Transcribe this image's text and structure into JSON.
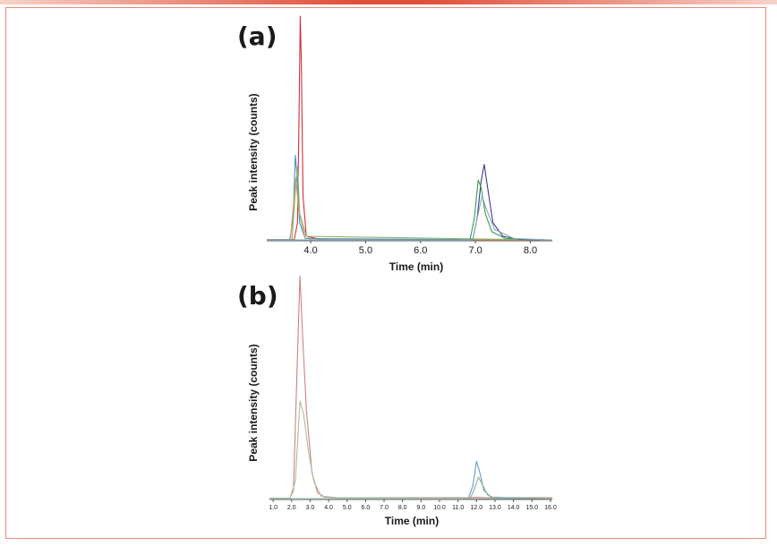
{
  "chart_data": [
    {
      "type": "line",
      "panel_label": "(a)",
      "xlabel": "Time (min)",
      "ylabel": "Peak intensity (counts)",
      "xlim": [
        3.2,
        8.4
      ],
      "ylim": [
        0,
        100
      ],
      "x_ticks": [
        "4.0",
        "5.0",
        "6.0",
        "7.0",
        "8.0"
      ],
      "x_tick_values": [
        4.0,
        5.0,
        6.0,
        7.0,
        8.0
      ],
      "series": [
        {
          "color": "#d0303a",
          "points": [
            [
              3.2,
              0.5
            ],
            [
              3.7,
              0.5
            ],
            [
              3.76,
              8
            ],
            [
              3.79,
              60
            ],
            [
              3.81,
              100
            ],
            [
              3.83,
              80
            ],
            [
              3.86,
              20
            ],
            [
              3.92,
              2
            ],
            [
              4.2,
              0.5
            ],
            [
              8.4,
              0.3
            ]
          ]
        },
        {
          "color": "#4a8fbf",
          "points": [
            [
              3.2,
              0.5
            ],
            [
              3.62,
              0.5
            ],
            [
              3.68,
              10
            ],
            [
              3.72,
              38
            ],
            [
              3.75,
              30
            ],
            [
              3.8,
              8
            ],
            [
              3.9,
              1
            ],
            [
              8.4,
              0.3
            ]
          ]
        },
        {
          "color": "#c9a060",
          "points": [
            [
              3.2,
              0.5
            ],
            [
              3.63,
              0.5
            ],
            [
              3.7,
              20
            ],
            [
              3.73,
              28
            ],
            [
              3.78,
              14
            ],
            [
              3.88,
              3
            ],
            [
              4.0,
              0.5
            ],
            [
              8.4,
              0.3
            ]
          ]
        },
        {
          "color": "#8fb070",
          "points": [
            [
              3.2,
              0.5
            ],
            [
              3.66,
              0.5
            ],
            [
              3.72,
              22
            ],
            [
              3.76,
              33
            ],
            [
              3.8,
              12
            ],
            [
              3.92,
              2
            ],
            [
              8.4,
              0.3
            ]
          ]
        },
        {
          "color": "#3c3c94",
          "points": [
            [
              3.2,
              0.3
            ],
            [
              6.95,
              0.3
            ],
            [
              7.03,
              10
            ],
            [
              7.1,
              26
            ],
            [
              7.16,
              34
            ],
            [
              7.22,
              24
            ],
            [
              7.32,
              8
            ],
            [
              7.5,
              2
            ],
            [
              7.8,
              0.6
            ],
            [
              8.4,
              0.3
            ]
          ]
        },
        {
          "color": "#3a9a4a",
          "points": [
            [
              3.2,
              0.3
            ],
            [
              6.9,
              0.3
            ],
            [
              6.98,
              10
            ],
            [
              7.05,
              27
            ],
            [
              7.1,
              24
            ],
            [
              7.18,
              12
            ],
            [
              7.3,
              4
            ],
            [
              7.55,
              1
            ],
            [
              8.4,
              0.3
            ]
          ]
        },
        {
          "color": "#8aa8b8",
          "points": [
            [
              3.2,
              0.3
            ],
            [
              6.95,
              0.3
            ],
            [
              7.05,
              12
            ],
            [
              7.12,
              20
            ],
            [
              7.2,
              14
            ],
            [
              7.35,
              5
            ],
            [
              7.7,
              1
            ],
            [
              8.4,
              0.3
            ]
          ]
        }
      ]
    },
    {
      "type": "line",
      "panel_label": "(b)",
      "xlabel": "Time (min)",
      "ylabel": "Peak intensity (counts)",
      "xlim": [
        0.8,
        16.1
      ],
      "ylim": [
        0,
        100
      ],
      "x_ticks": [
        "1.0",
        "2.0",
        "3.0",
        "4.0",
        "5.0",
        "6.0",
        "7.0",
        "8.0",
        "9.0",
        "10.0",
        "11.0",
        "12.0",
        "13.0",
        "14.0",
        "15.0",
        "16.0"
      ],
      "x_tick_values": [
        1.0,
        2.0,
        3.0,
        4.0,
        5.0,
        6.0,
        7.0,
        8.0,
        9.0,
        10.0,
        11.0,
        12.0,
        13.0,
        14.0,
        15.0,
        16.0
      ],
      "series": [
        {
          "color": "#d08080",
          "points": [
            [
              0.8,
              0.5
            ],
            [
              1.6,
              0.5
            ],
            [
              1.9,
              0.6
            ],
            [
              2.1,
              4
            ],
            [
              2.3,
              60
            ],
            [
              2.45,
              100
            ],
            [
              2.6,
              72
            ],
            [
              2.8,
              40
            ],
            [
              3.1,
              12
            ],
            [
              3.4,
              3
            ],
            [
              3.8,
              1
            ],
            [
              4.5,
              0.8
            ],
            [
              10,
              0.8
            ],
            [
              11.6,
              0.8
            ],
            [
              12.0,
              1
            ],
            [
              12.4,
              0.8
            ],
            [
              16.1,
              0.8
            ]
          ]
        },
        {
          "color": "#b0b8a0",
          "points": [
            [
              0.8,
              0.5
            ],
            [
              1.9,
              0.5
            ],
            [
              2.2,
              8
            ],
            [
              2.45,
              44
            ],
            [
              2.65,
              38
            ],
            [
              2.9,
              22
            ],
            [
              3.2,
              8
            ],
            [
              3.6,
              1.5
            ],
            [
              4.5,
              0.8
            ],
            [
              11.6,
              0.5
            ],
            [
              16.1,
              0.5
            ]
          ]
        },
        {
          "color": "#6a9ac8",
          "points": [
            [
              0.8,
              0.3
            ],
            [
              11.55,
              0.3
            ],
            [
              11.8,
              6
            ],
            [
              12.0,
              17
            ],
            [
              12.15,
              13
            ],
            [
              12.4,
              4
            ],
            [
              12.8,
              1
            ],
            [
              16.1,
              0.3
            ]
          ]
        },
        {
          "color": "#8ab090",
          "points": [
            [
              0.8,
              0.3
            ],
            [
              11.65,
              0.3
            ],
            [
              11.9,
              5
            ],
            [
              12.1,
              10
            ],
            [
              12.3,
              7
            ],
            [
              12.6,
              2
            ],
            [
              13.0,
              0.6
            ],
            [
              16.1,
              0.3
            ]
          ]
        }
      ]
    }
  ]
}
